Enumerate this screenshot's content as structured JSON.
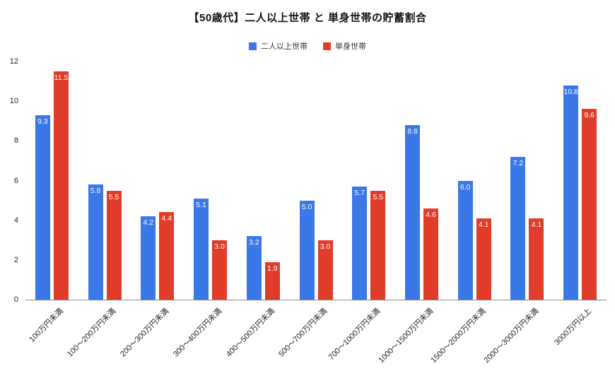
{
  "title": "【50歳代】二人以上世帯 と 単身世帯の貯蓄割合",
  "colors": {
    "series1": "#3b78e7",
    "series2": "#e13b2a",
    "axis_line": "#8a8a8a",
    "text": "#222222",
    "bar_label": "#ffffff"
  },
  "chart_data": {
    "type": "bar",
    "title": "【50歳代】二人以上世帯 と 単身世帯の貯蓄割合",
    "categories": [
      "100万円未満",
      "100〜200万円未満",
      "200〜300万円未満",
      "300〜400万円未満",
      "400〜500万円未満",
      "500〜700万円未満",
      "700〜1000万円未満",
      "1000〜1500万円未満",
      "1500〜2000万円未満",
      "2000〜3000万円未満",
      "3000万円以上"
    ],
    "series": [
      {
        "name": "二人以上世帯",
        "color": "#3b78e7",
        "values": [
          9.3,
          5.8,
          4.2,
          5.1,
          3.2,
          5.0,
          5.7,
          8.8,
          6.0,
          7.2,
          10.8
        ]
      },
      {
        "name": "単身世帯",
        "color": "#e13b2a",
        "values": [
          11.5,
          5.5,
          4.4,
          3.0,
          1.9,
          3.0,
          5.5,
          4.6,
          4.1,
          4.1,
          9.6
        ]
      }
    ],
    "xlabel": "",
    "ylabel": "",
    "ylim": [
      0,
      12
    ],
    "yticks": [
      0,
      2,
      4,
      6,
      8,
      10,
      12
    ],
    "grid": false,
    "legend_position": "top",
    "data_labels": true,
    "data_label_decimals": 1
  }
}
